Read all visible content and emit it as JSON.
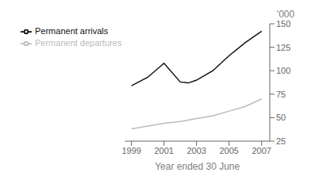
{
  "chart_data": {
    "type": "line",
    "xlabel": "Year ended 30 June",
    "ylabel": "'000",
    "series": [
      {
        "name": "Permanent arrivals",
        "color": "#111111",
        "x": [
          1999,
          2000,
          2001,
          2002,
          2002.5,
          2003,
          2004,
          2005,
          2006,
          2007
        ],
        "values": [
          84,
          93,
          108,
          88,
          87,
          90,
          100,
          116,
          130,
          142
        ]
      },
      {
        "name": "Permanent departures",
        "color": "#bbbbbb",
        "x": [
          1999,
          2000,
          2001,
          2002,
          2003,
          2004,
          2005,
          2006,
          2007
        ],
        "values": [
          38,
          41,
          44,
          46,
          49,
          52,
          57,
          62,
          70
        ]
      }
    ],
    "xlim": [
      1998.6,
      2007.5
    ],
    "xticks": [
      1999,
      2001,
      2003,
      2005,
      2007
    ],
    "ylim": [
      25,
      150
    ],
    "yticks": [
      25,
      50,
      75,
      100,
      125,
      150
    ],
    "grid": false,
    "legend": "upper left"
  }
}
